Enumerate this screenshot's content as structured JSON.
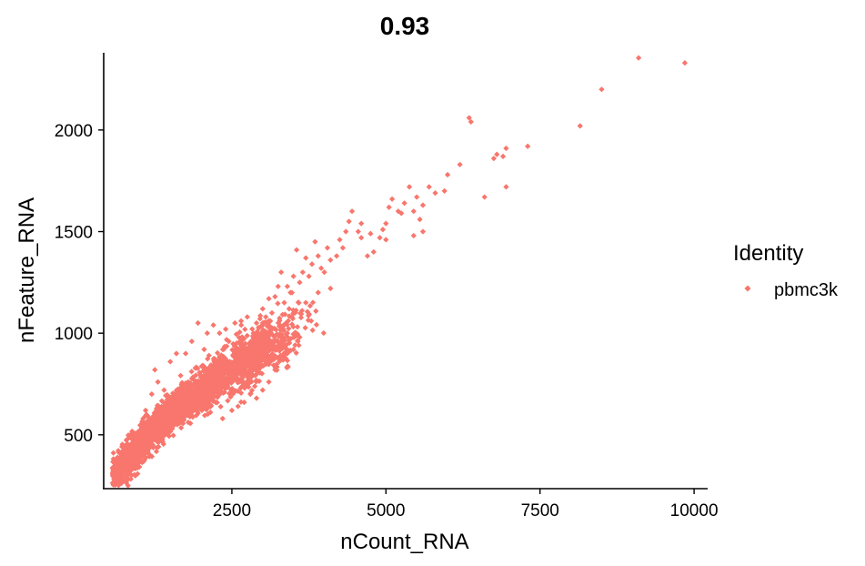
{
  "chart_data": {
    "type": "scatter",
    "title": "0.93",
    "xlabel": "nCount_RNA",
    "ylabel": "nFeature_RNA",
    "xlim": [
      420,
      10220
    ],
    "ylim": [
      235,
      2380
    ],
    "xticks": [
      2500,
      5000,
      7500,
      10000
    ],
    "yticks": [
      500,
      1000,
      1500,
      2000
    ],
    "grid": false,
    "legend": {
      "title": "Identity",
      "position": "right",
      "entries": [
        "pbmc3k"
      ]
    },
    "series": [
      {
        "name": "pbmc3k",
        "color": "#F8766D",
        "marker": "diamond",
        "points": [
          [
            9100,
            2355
          ],
          [
            9850,
            2330
          ],
          [
            8500,
            2200
          ],
          [
            8150,
            2020
          ],
          [
            7300,
            1920
          ],
          [
            6950,
            1910
          ],
          [
            6900,
            1870
          ],
          [
            6800,
            1880
          ],
          [
            6750,
            1860
          ],
          [
            6950,
            1720
          ],
          [
            6600,
            1670
          ],
          [
            6350,
            2060
          ],
          [
            6380,
            2040
          ],
          [
            6200,
            1830
          ],
          [
            6000,
            1780
          ],
          [
            5950,
            1700
          ],
          [
            5800,
            1690
          ],
          [
            5700,
            1720
          ],
          [
            5600,
            1630
          ],
          [
            5500,
            1670
          ],
          [
            5550,
            1560
          ],
          [
            5450,
            1600
          ],
          [
            5380,
            1720
          ],
          [
            5300,
            1640
          ],
          [
            5250,
            1590
          ],
          [
            5200,
            1600
          ],
          [
            5100,
            1660
          ],
          [
            5050,
            1620
          ],
          [
            5000,
            1540
          ],
          [
            4950,
            1510
          ],
          [
            5000,
            1460
          ],
          [
            4900,
            1470
          ],
          [
            4750,
            1490
          ],
          [
            5450,
            1480
          ],
          [
            5600,
            1500
          ],
          [
            4600,
            1540
          ],
          [
            4550,
            1500
          ],
          [
            4600,
            1470
          ],
          [
            4450,
            1600
          ],
          [
            4400,
            1550
          ],
          [
            4350,
            1500
          ],
          [
            4300,
            1420
          ],
          [
            4250,
            1460
          ],
          [
            4200,
            1380
          ],
          [
            4100,
            1360
          ],
          [
            4050,
            1420
          ],
          [
            4000,
            1300
          ],
          [
            3950,
            1320
          ],
          [
            3900,
            1380
          ],
          [
            3800,
            1340
          ],
          [
            3750,
            1280
          ],
          [
            3700,
            1370
          ],
          [
            3650,
            1300
          ],
          [
            3600,
            1250
          ],
          [
            3500,
            1280
          ],
          [
            3450,
            1200
          ],
          [
            3400,
            1230
          ],
          [
            3350,
            1150
          ],
          [
            3250,
            1230
          ],
          [
            3200,
            1180
          ],
          [
            3150,
            1100
          ],
          [
            3100,
            1170
          ],
          [
            3050,
            1080
          ],
          [
            3000,
            1120
          ],
          [
            3000,
            1050
          ],
          [
            2950,
            980
          ],
          [
            2900,
            1050
          ],
          [
            2850,
            1000
          ],
          [
            2800,
            950
          ],
          [
            2750,
            1080
          ],
          [
            2700,
            900
          ],
          [
            3300,
            1300
          ],
          [
            3550,
            1410
          ],
          [
            3850,
            1450
          ],
          [
            4700,
            1380
          ],
          [
            4800,
            1400
          ],
          [
            3900,
            1200
          ],
          [
            3500,
            1100
          ],
          [
            4100,
            1220
          ],
          [
            3700,
            1150
          ],
          [
            2200,
            1040
          ],
          [
            2300,
            1000
          ],
          [
            2450,
            960
          ],
          [
            2050,
            920
          ],
          [
            2100,
            1000
          ],
          [
            2400,
            1020
          ],
          [
            2550,
            1050
          ],
          [
            2650,
            1060
          ],
          [
            1950,
            1050
          ],
          [
            2150,
            760
          ],
          [
            2600,
            640
          ],
          [
            2700,
            660
          ],
          [
            2800,
            700
          ],
          [
            2900,
            680
          ],
          [
            3000,
            720
          ],
          [
            3100,
            760
          ],
          [
            3200,
            820
          ],
          [
            3300,
            880
          ],
          [
            3400,
            900
          ],
          [
            3500,
            920
          ],
          [
            3600,
            980
          ],
          [
            3400,
            1000
          ],
          [
            3300,
            960
          ],
          [
            2500,
            620
          ],
          [
            2350,
            580
          ],
          [
            1200,
            700
          ],
          [
            1300,
            760
          ],
          [
            1400,
            720
          ],
          [
            1500,
            860
          ],
          [
            1100,
            620
          ],
          [
            1250,
            820
          ],
          [
            1600,
            900
          ],
          [
            1750,
            900
          ],
          [
            1850,
            960
          ],
          [
            900,
            480
          ],
          [
            800,
            420
          ],
          [
            700,
            360
          ],
          [
            650,
            300
          ],
          [
            750,
            320
          ],
          [
            600,
            280
          ],
          [
            850,
            350
          ],
          [
            950,
            400
          ],
          [
            1000,
            520
          ],
          [
            1050,
            560
          ],
          [
            700,
            320
          ]
        ],
        "dense_core": [
          [
            600,
            280
          ],
          [
            900,
            410
          ],
          [
            1200,
            520
          ],
          [
            1500,
            600
          ],
          [
            1800,
            680
          ],
          [
            2100,
            740
          ],
          [
            2400,
            810
          ],
          [
            2700,
            860
          ],
          [
            3000,
            920
          ],
          [
            3300,
            980
          ]
        ]
      }
    ]
  }
}
